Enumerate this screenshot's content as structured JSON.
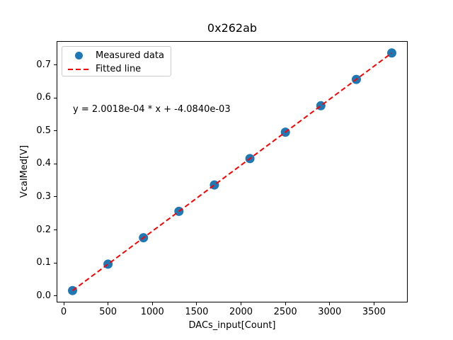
{
  "chart_data": {
    "type": "scatter",
    "title": "0x262ab",
    "xlabel": "DACs_input[Count]",
    "ylabel": "VcalMed[V]",
    "annotation": "y = 2.0018e-04 * x + -4.0840e-03",
    "series": [
      {
        "name": "Measured data",
        "type": "scatter",
        "marker": "circle",
        "color": "#1f77b4",
        "x": [
          100,
          500,
          900,
          1300,
          1700,
          2100,
          2500,
          2900,
          3300,
          3700
        ],
        "y": [
          0.0159,
          0.096,
          0.1761,
          0.2562,
          0.3362,
          0.4163,
          0.4964,
          0.5765,
          0.6565,
          0.7366
        ]
      },
      {
        "name": "Fitted line",
        "type": "line",
        "style": "dashed",
        "color": "#ff0000",
        "slope": 0.00020018,
        "intercept": -0.004084,
        "x_range": [
          100,
          3700
        ]
      }
    ],
    "legend": {
      "position": "upper-left",
      "items": [
        {
          "label": "Measured data",
          "marker": "circle",
          "color": "#1f77b4"
        },
        {
          "label": "Fitted line",
          "marker": "dashed-line",
          "color": "#ff0000"
        }
      ]
    },
    "xlim": [
      -80,
      3880
    ],
    "ylim": [
      -0.0202,
      0.7727
    ],
    "xticks": [
      0,
      500,
      1000,
      1500,
      2000,
      2500,
      3000,
      3500
    ],
    "yticks": [
      0.0,
      0.1,
      0.2,
      0.3,
      0.4,
      0.5,
      0.6,
      0.7
    ],
    "grid": false,
    "background": "#ffffff"
  }
}
